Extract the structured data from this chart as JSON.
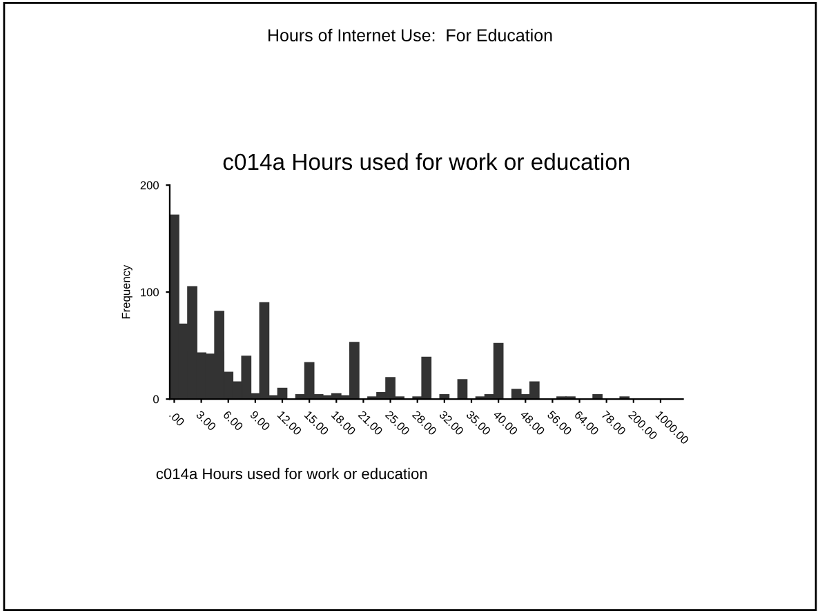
{
  "chart_data": {
    "type": "bar",
    "title": "Hours of Internet Use:  For Education",
    "subtitle": "c014a Hours used for work or education",
    "xlabel": "c014a Hours used for work or education",
    "ylabel": "Frequency",
    "categories": [
      ".00",
      null,
      null,
      "3.00",
      null,
      null,
      "6.00",
      null,
      null,
      "9.00",
      null,
      null,
      "12.00",
      null,
      null,
      "15.00",
      null,
      null,
      "18.00",
      null,
      null,
      "21.00",
      null,
      null,
      "25.00",
      null,
      null,
      "28.00",
      null,
      null,
      "32.00",
      null,
      null,
      "35.00",
      null,
      null,
      "40.00",
      null,
      null,
      "48.00",
      null,
      null,
      "56.00",
      null,
      null,
      "64.00",
      null,
      null,
      "78.00",
      null,
      null,
      "200.00",
      null,
      null,
      "1000.00",
      null,
      null
    ],
    "values": [
      172,
      70,
      105,
      43,
      42,
      82,
      25,
      16,
      40,
      5,
      90,
      3,
      10,
      null,
      4,
      34,
      4,
      3,
      5,
      3,
      53,
      null,
      2,
      6,
      20,
      2,
      null,
      2,
      39,
      0,
      4,
      0,
      18,
      null,
      2,
      4,
      52,
      null,
      9,
      4,
      16,
      0,
      0,
      2,
      2,
      0,
      null,
      4,
      0,
      0,
      2,
      0,
      0,
      0,
      null,
      0,
      0
    ],
    "color": "#333333",
    "ylim": [
      0,
      200
    ],
    "yticks": [
      0,
      100,
      200
    ],
    "grid": false
  }
}
